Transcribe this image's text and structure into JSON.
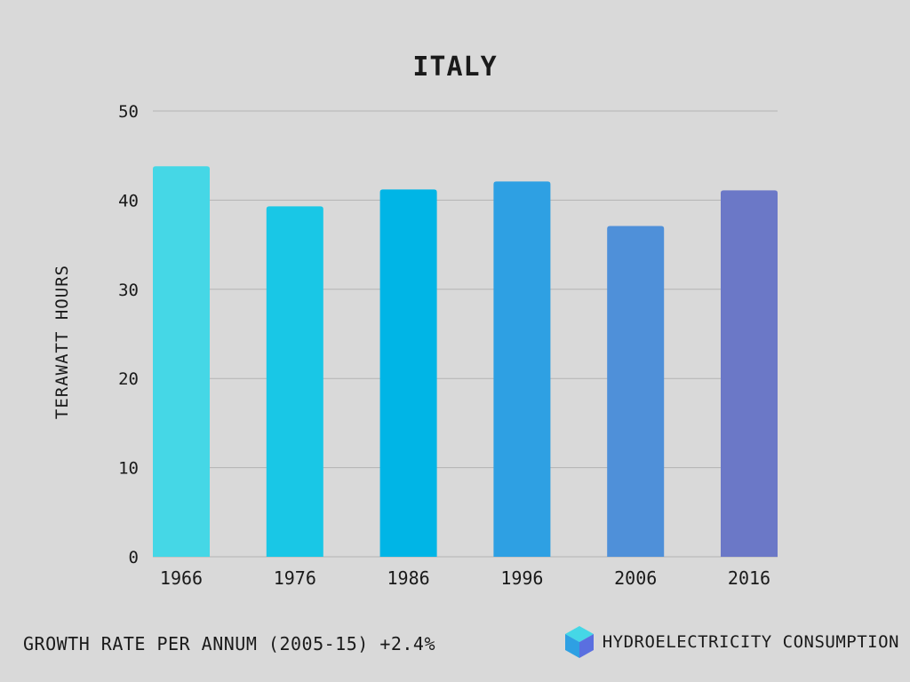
{
  "colors": {
    "background": "#d9d9d9",
    "gridline": "#b3b3b3",
    "text": "#1a1a1a",
    "bars": [
      "#45d7e6",
      "#19c7e6",
      "#00b5e6",
      "#2ea0e3",
      "#4f90d9",
      "#6b78c7"
    ],
    "logo_top": "#45d7e6",
    "logo_left": "#2ea0e3",
    "logo_right": "#5a6fe0"
  },
  "chart_data": {
    "type": "bar",
    "title": "ITALY",
    "xlabel": "",
    "ylabel": "TERAWATT HOURS",
    "categories": [
      "1966",
      "1976",
      "1986",
      "1996",
      "2006",
      "2016"
    ],
    "values": [
      43.8,
      39.3,
      41.2,
      42.1,
      37.1,
      41.1
    ],
    "ylim": [
      0,
      50
    ],
    "yticks": [
      "0",
      "10",
      "20",
      "30",
      "40",
      "50"
    ],
    "grid": true,
    "legend": "none"
  },
  "footer": {
    "growth_text": "GROWTH RATE PER ANNUM (2005-15) +2.4%",
    "source_label": "HYDROELECTRICITY CONSUMPTION",
    "logo_icon": "cube-icon"
  }
}
